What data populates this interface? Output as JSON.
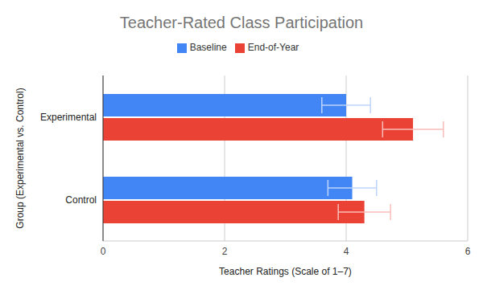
{
  "chart_data": {
    "type": "bar",
    "orientation": "horizontal",
    "title": "Teacher-Rated Class Participation",
    "x_label": "Teacher Ratings (Scale of 1–7)",
    "y_label": "Group (Experimental vs. Control)",
    "categories": [
      "Experimental",
      "Control"
    ],
    "series": [
      {
        "name": "Baseline",
        "color": "#4285f4",
        "values": [
          4.0,
          4.1
        ],
        "errors": [
          0.4,
          0.4
        ]
      },
      {
        "name": "End-of-Year",
        "color": "#ea4335",
        "values": [
          5.1,
          4.3
        ],
        "errors": [
          0.5,
          0.43
        ]
      }
    ],
    "xlim": [
      0,
      6
    ],
    "xticks": [
      0,
      2,
      4,
      6
    ],
    "grid": true,
    "legend": "top"
  }
}
